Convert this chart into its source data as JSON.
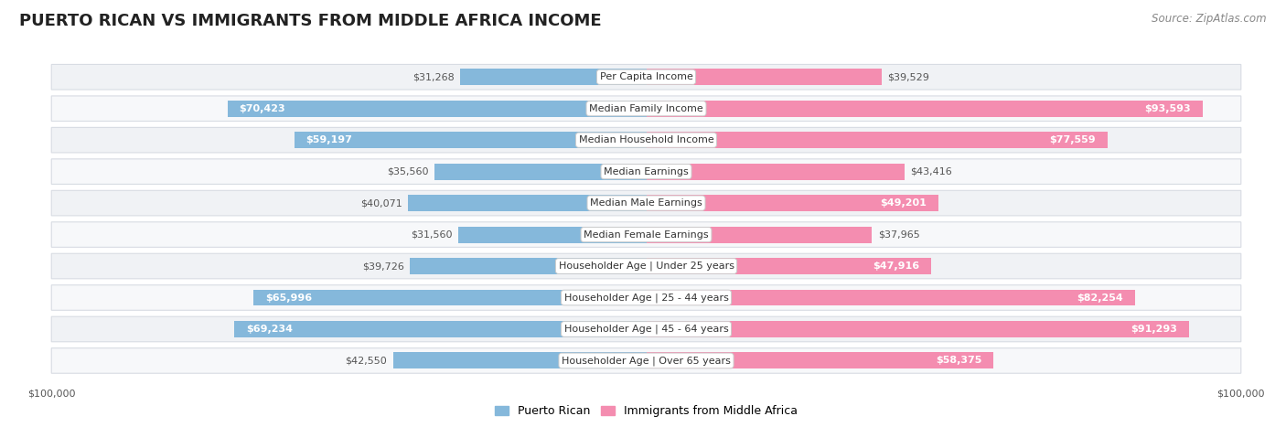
{
  "title": "PUERTO RICAN VS IMMIGRANTS FROM MIDDLE AFRICA INCOME",
  "source": "Source: ZipAtlas.com",
  "categories": [
    "Per Capita Income",
    "Median Family Income",
    "Median Household Income",
    "Median Earnings",
    "Median Male Earnings",
    "Median Female Earnings",
    "Householder Age | Under 25 years",
    "Householder Age | 25 - 44 years",
    "Householder Age | 45 - 64 years",
    "Householder Age | Over 65 years"
  ],
  "puerto_rican": [
    31268,
    70423,
    59197,
    35560,
    40071,
    31560,
    39726,
    65996,
    69234,
    42550
  ],
  "middle_africa": [
    39529,
    93593,
    77559,
    43416,
    49201,
    37965,
    47916,
    82254,
    91293,
    58375
  ],
  "max_val": 100000,
  "bar_color_pr": "#85b8db",
  "bar_color_ma": "#f48db0",
  "label_color_inside": "#ffffff",
  "label_color_outside": "#555555",
  "background_color": "#ffffff",
  "row_bg_even": "#f0f2f5",
  "row_bg_odd": "#f7f8fa",
  "row_border_color": "#d8dce3",
  "legend_pr": "Puerto Rican",
  "legend_ma": "Immigrants from Middle Africa",
  "title_fontsize": 13,
  "source_fontsize": 8.5,
  "bar_label_fontsize": 8,
  "category_fontsize": 8,
  "legend_fontsize": 9,
  "axis_label_fontsize": 8,
  "inside_threshold": 45000
}
